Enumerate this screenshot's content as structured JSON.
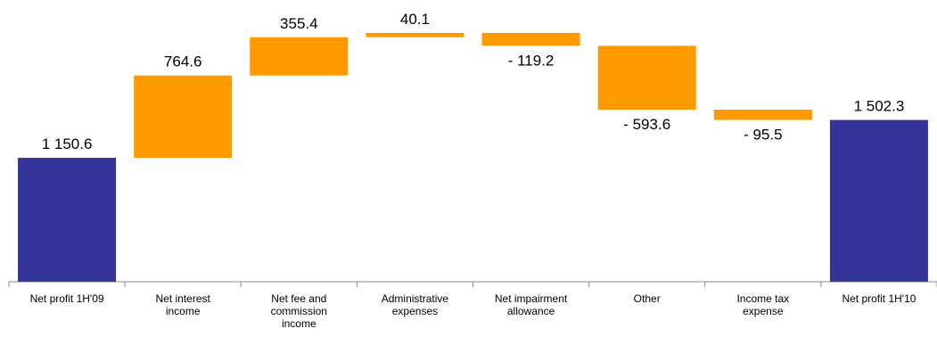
{
  "chart_data": {
    "type": "waterfall",
    "categories": [
      "Net profit 1H'09",
      "Net interest income",
      "Net fee and commission income",
      "Administrative expenses",
      "Net impairment allowance",
      "Other",
      "Income tax expense",
      "Net profit 1H'10"
    ],
    "values": [
      1150.6,
      764.6,
      355.4,
      40.1,
      -119.2,
      -593.6,
      -95.5,
      1502.3
    ],
    "value_labels": [
      "1 150.6",
      "764.6",
      "355.4",
      "40.1",
      "- 119.2",
      "- 593.6",
      "- 95.5",
      "1 502.3"
    ],
    "measure": [
      "absolute",
      "relative",
      "relative",
      "relative",
      "relative",
      "relative",
      "relative",
      "total"
    ],
    "colors": [
      "#333399",
      "#ff9900",
      "#ff9900",
      "#ff9900",
      "#ff9900",
      "#ff9900",
      "#ff9900",
      "#333399"
    ],
    "ylim": [
      0,
      2600
    ]
  }
}
